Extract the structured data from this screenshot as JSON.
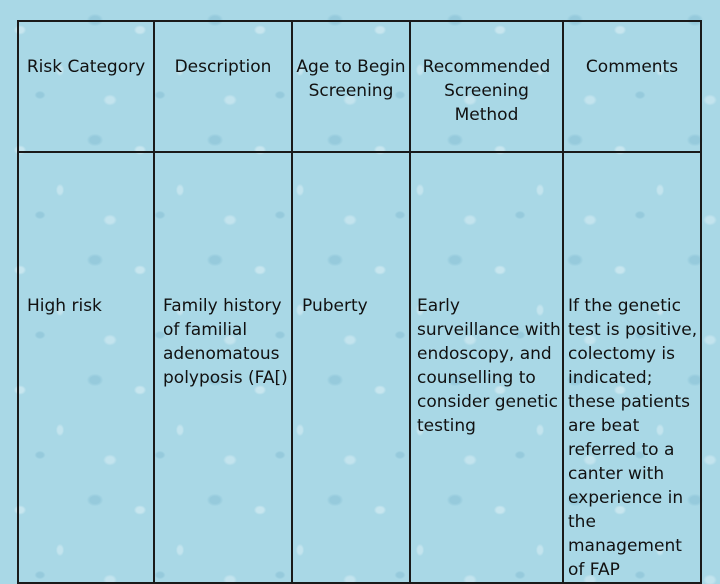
{
  "table": {
    "headers": [
      "Risk Category",
      "Description",
      "Age to Begin Screening",
      "Recommended Screening Method",
      "Comments"
    ],
    "rows": [
      {
        "risk_category": "High risk",
        "description": "Family history of familial adenomatous polyposis (FA[)",
        "age": "Puberty",
        "method": "Early surveillance with endoscopy, and counselling to consider genetic testing",
        "comments": "If the genetic test is positive, colectomy is indicated; these patients are beat referred to a canter with experience in the management of FAP"
      }
    ]
  },
  "colors": {
    "background": "#a9d8e6",
    "border": "#1a1a1a",
    "text": "#111111"
  }
}
